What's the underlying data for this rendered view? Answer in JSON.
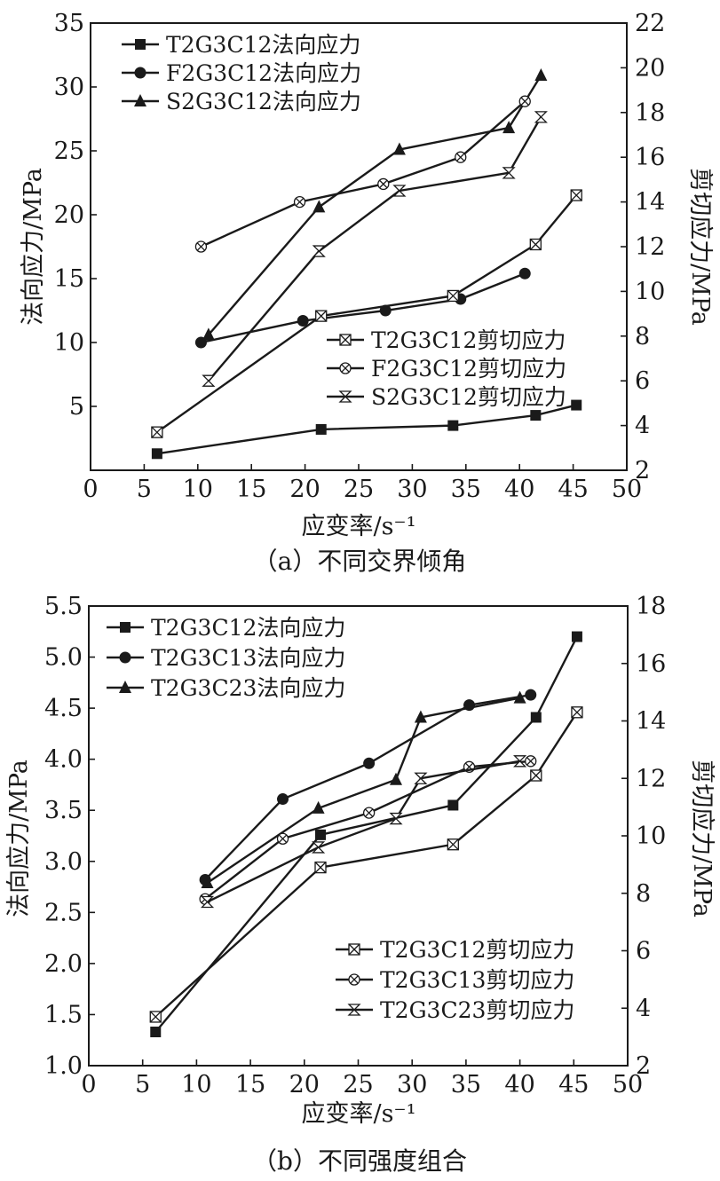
{
  "chart_data": [
    {
      "type": "line",
      "caption": "（a）不同交界倾角",
      "xlabel": "应变率/s⁻¹",
      "ylabel": "法向应力/MPa",
      "y2label": "剪切应力/MPa",
      "xlim": [
        0,
        50
      ],
      "ylim": [
        0,
        35
      ],
      "y2lim": [
        2,
        22
      ],
      "xticks": [
        0,
        5,
        10,
        15,
        20,
        25,
        30,
        35,
        40,
        45,
        50
      ],
      "yticks": [
        5,
        10,
        15,
        20,
        25,
        30,
        35
      ],
      "y2ticks": [
        2,
        4,
        6,
        8,
        10,
        12,
        14,
        16,
        18,
        20,
        22
      ],
      "legend_top": [
        "T2G3C12法向应力",
        "F2G3C12法向应力",
        "S2G3C12法向应力"
      ],
      "legend_bottom": [
        "T2G3C12剪切应力",
        "F2G3C12剪切应力",
        "S2G3C12剪切应力"
      ],
      "series": [
        {
          "name": "T2G3C12法向应力",
          "axis": "left",
          "marker": "square",
          "x": [
            6.2,
            21.5,
            33.8,
            41.5,
            45.3
          ],
          "y": [
            1.3,
            3.2,
            3.5,
            4.3,
            5.1
          ]
        },
        {
          "name": "F2G3C12法向应力",
          "axis": "left",
          "marker": "circle",
          "x": [
            10.3,
            19.8,
            27.5,
            34.5,
            40.5
          ],
          "y": [
            10.0,
            11.7,
            12.5,
            13.4,
            15.4
          ]
        },
        {
          "name": "S2G3C12法向应力",
          "axis": "left",
          "marker": "triangle",
          "x": [
            11.0,
            21.3,
            28.8,
            39.0,
            42.0
          ],
          "y": [
            10.6,
            20.6,
            25.1,
            26.8,
            30.9
          ]
        },
        {
          "name": "T2G3C12剪切应力",
          "axis": "right",
          "marker": "boxx",
          "x": [
            6.2,
            21.5,
            33.8,
            41.5,
            45.3
          ],
          "y": [
            3.7,
            8.9,
            9.8,
            12.1,
            14.3
          ]
        },
        {
          "name": "F2G3C12剪切应力",
          "axis": "right",
          "marker": "circlex",
          "x": [
            10.3,
            19.5,
            27.3,
            34.5,
            40.5
          ],
          "y": [
            12.0,
            14.0,
            14.8,
            16.0,
            18.5
          ]
        },
        {
          "name": "S2G3C12剪切应力",
          "axis": "right",
          "marker": "hourglass",
          "x": [
            11.0,
            21.3,
            28.8,
            39.0,
            42.0
          ],
          "y": [
            6.0,
            11.8,
            14.5,
            15.3,
            17.8
          ]
        }
      ]
    },
    {
      "type": "line",
      "caption": "（b）不同强度组合",
      "xlabel": "应变率/s⁻¹",
      "ylabel": "法向应力/MPa",
      "y2label": "剪切应力/MPa",
      "xlim": [
        0,
        50
      ],
      "ylim": [
        1.0,
        5.5
      ],
      "y2lim": [
        2,
        18
      ],
      "xticks": [
        0,
        5,
        10,
        15,
        20,
        25,
        30,
        35,
        40,
        45,
        50
      ],
      "yticks": [
        "1.0",
        "1.5",
        "2.0",
        "2.5",
        "3.0",
        "3.5",
        "4.0",
        "4.5",
        "5.0",
        "5.5"
      ],
      "y2ticks": [
        2,
        4,
        6,
        8,
        10,
        12,
        14,
        16,
        18
      ],
      "legend_top": [
        "T2G3C12法向应力",
        "T2G3C13法向应力",
        "T2G3C23法向应力"
      ],
      "legend_bottom": [
        "T2G3C12剪切应力",
        "T2G3C13剪切应力",
        "T2G3C23剪切应力"
      ],
      "series": [
        {
          "name": "T2G3C12法向应力",
          "axis": "left",
          "marker": "square",
          "x": [
            6.2,
            21.5,
            33.8,
            41.5,
            45.3
          ],
          "y": [
            1.33,
            3.26,
            3.55,
            4.41,
            5.2
          ]
        },
        {
          "name": "T2G3C13法向应力",
          "axis": "left",
          "marker": "circle",
          "x": [
            10.8,
            18.0,
            26.0,
            35.3,
            41.0
          ],
          "y": [
            2.82,
            3.61,
            3.96,
            4.53,
            4.63
          ]
        },
        {
          "name": "T2G3C23法向应力",
          "axis": "left",
          "marker": "triangle",
          "x": [
            11.0,
            21.3,
            28.5,
            30.8,
            40.0
          ],
          "y": [
            2.79,
            3.52,
            3.8,
            4.41,
            4.6
          ]
        },
        {
          "name": "T2G3C12剪切应力",
          "axis": "right",
          "marker": "boxx",
          "x": [
            6.2,
            21.5,
            33.8,
            41.5,
            45.3
          ],
          "y": [
            3.7,
            8.9,
            9.7,
            12.1,
            14.3
          ]
        },
        {
          "name": "T2G3C13剪切应力",
          "axis": "right",
          "marker": "circlex",
          "x": [
            10.8,
            18.0,
            26.0,
            35.3,
            41.0
          ],
          "y": [
            7.8,
            9.9,
            10.8,
            12.4,
            12.6
          ]
        },
        {
          "name": "T2G3C23剪切应力",
          "axis": "right",
          "marker": "hourglass",
          "x": [
            11.0,
            21.3,
            28.5,
            30.8,
            40.0
          ],
          "y": [
            7.7,
            9.6,
            10.6,
            12.0,
            12.6
          ]
        }
      ]
    }
  ]
}
